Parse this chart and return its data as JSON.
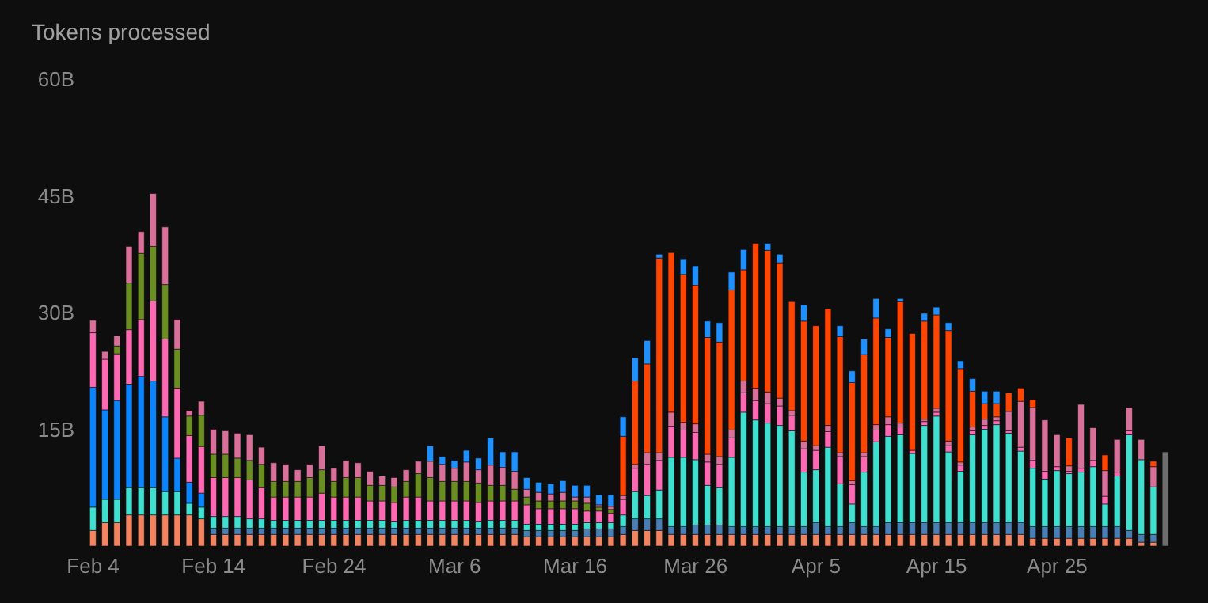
{
  "chart_data": {
    "type": "bar",
    "title": "Tokens processed",
    "stacked": true,
    "categories": [
      "Feb 4",
      null,
      null,
      null,
      null,
      null,
      null,
      null,
      null,
      null,
      "Feb 14",
      null,
      null,
      null,
      null,
      null,
      null,
      null,
      null,
      null,
      "Feb 24",
      null,
      null,
      null,
      null,
      null,
      null,
      null,
      null,
      null,
      "Mar 6",
      null,
      null,
      null,
      null,
      null,
      null,
      null,
      null,
      null,
      "Mar 16",
      null,
      null,
      null,
      null,
      null,
      null,
      null,
      null,
      null,
      "Mar 26",
      null,
      null,
      null,
      null,
      null,
      null,
      null,
      null,
      null,
      "Apr 5",
      null,
      null,
      null,
      null,
      null,
      null,
      null,
      null,
      null,
      "Apr 15",
      null,
      null,
      null,
      null,
      null,
      null,
      null,
      null,
      null,
      "Apr 25",
      null,
      null,
      null,
      null,
      null,
      null,
      null,
      null,
      null
    ],
    "ylim": [
      0,
      60
    ],
    "yticks": [
      {
        "value": 15,
        "label": "15B"
      },
      {
        "value": 30,
        "label": "30B"
      },
      {
        "value": 45,
        "label": "45B"
      },
      {
        "value": 60,
        "label": "60B"
      }
    ],
    "series": [
      {
        "color": "#f4845f",
        "values": [
          2,
          3,
          3,
          4,
          4,
          4,
          4,
          4,
          4,
          3.5,
          1.5,
          1.5,
          1.5,
          1.5,
          1.5,
          1.5,
          1.5,
          1.5,
          1.5,
          1.5,
          1.5,
          1.5,
          1.5,
          1.5,
          1.5,
          1.5,
          1.5,
          1.5,
          1.5,
          1.5,
          1.5,
          1.5,
          1.5,
          1.5,
          1.5,
          1.5,
          1.2,
          1.2,
          1.2,
          1.2,
          1.2,
          1.2,
          1.2,
          1.2,
          1.5,
          2,
          2,
          2,
          1.5,
          1.5,
          1.5,
          1.5,
          1.5,
          1.5,
          1.5,
          1.5,
          1.5,
          1.5,
          1.5,
          1.5,
          1.5,
          1.5,
          1.5,
          1.5,
          1.5,
          1.5,
          1.5,
          1.5,
          1.5,
          1.5,
          1.5,
          1.5,
          1.5,
          1.5,
          1.5,
          1.5,
          1.5,
          1.5,
          1,
          1,
          1,
          1,
          1,
          1,
          1,
          1,
          1,
          0.5,
          0.5,
          0
        ]
      },
      {
        "color": "#4a7fb5",
        "values": [
          0,
          0,
          0,
          0,
          0,
          0,
          0,
          0,
          0,
          0,
          0.8,
          0.8,
          0.8,
          0.8,
          0.8,
          0.8,
          0.8,
          0.8,
          0.8,
          0.8,
          0.8,
          0.8,
          0.8,
          0.8,
          0.8,
          0.8,
          0.8,
          0.8,
          0.8,
          0.8,
          0.8,
          0.8,
          0.8,
          0.8,
          0.8,
          0.8,
          0.8,
          0.8,
          0.8,
          0.8,
          0.8,
          1,
          1,
          1,
          1,
          1.5,
          1.5,
          1.5,
          1,
          1,
          1.2,
          1.2,
          1.2,
          1,
          1,
          1,
          1,
          1,
          1,
          1,
          1.5,
          1,
          1,
          1.5,
          1,
          1,
          1.5,
          1.5,
          1.5,
          1.5,
          1.5,
          1.5,
          1.5,
          1.5,
          1.5,
          1.5,
          1.5,
          1.5,
          1.5,
          1.5,
          1.5,
          1.5,
          1.5,
          1.5,
          1.5,
          1.5,
          1,
          1,
          1,
          0
        ]
      },
      {
        "color": "#40e0d0",
        "values": [
          3,
          3,
          3,
          3.5,
          3.5,
          3.5,
          3,
          3,
          1.5,
          1.5,
          1.5,
          1.5,
          1.5,
          1.2,
          1.2,
          1,
          1,
          1,
          1,
          1,
          1,
          1,
          1,
          1,
          1,
          0.8,
          1,
          1,
          1,
          1,
          1,
          1,
          0.8,
          1,
          1,
          1,
          0.8,
          0.8,
          0.8,
          0.8,
          0.8,
          0.8,
          0.8,
          0.8,
          1.5,
          3.5,
          3,
          3.7,
          8.9,
          8.9,
          8.4,
          5.1,
          4.8,
          8.9,
          14.7,
          13.7,
          13.3,
          13,
          12.3,
          7,
          6.8,
          10.2,
          5.5,
          2.4,
          7,
          10.9,
          11.1,
          11.3,
          8.9,
          12.5,
          13.7,
          9.1,
          6.6,
          11.3,
          12,
          12.6,
          11.5,
          9.2,
          7.5,
          6.1,
          7.2,
          6.8,
          7,
          7.7,
          2.9,
          6.5,
          12.3,
          9.6,
          6.1,
          0
        ]
      },
      {
        "color": "#0a84ff",
        "values": [
          15.4,
          11.5,
          12.7,
          13.3,
          14.3,
          13.7,
          9.6,
          4.3,
          2.7,
          1.8,
          0,
          0,
          0,
          0,
          0,
          0,
          0,
          0,
          0,
          0,
          0,
          0,
          0,
          0,
          0,
          0,
          0,
          0,
          0,
          0,
          0,
          0,
          0,
          0,
          0,
          0,
          0,
          0,
          0,
          0,
          0,
          0,
          0,
          0,
          0,
          0,
          0,
          0,
          0,
          0,
          0,
          0,
          0,
          0,
          0,
          0,
          0,
          0,
          0,
          0,
          0,
          0,
          0,
          0,
          0,
          0,
          0,
          0,
          0,
          0,
          0,
          0,
          0,
          0,
          0,
          0,
          0,
          0,
          0,
          0,
          0,
          0,
          0,
          0,
          0,
          0,
          0,
          0,
          0,
          0
        ]
      },
      {
        "color": "#ff69b4",
        "values": [
          7,
          6.5,
          6,
          7,
          7.3,
          10.3,
          10,
          9,
          6,
          6,
          5,
          5,
          5,
          5,
          4,
          3,
          3,
          3,
          3,
          3.5,
          3,
          3,
          3,
          2.5,
          2.5,
          2.5,
          3,
          3,
          2.5,
          2.5,
          2.5,
          2.5,
          2.5,
          2.5,
          2.5,
          2.5,
          2.5,
          2,
          2,
          2,
          2,
          1.5,
          1.5,
          1.2,
          2,
          3,
          4,
          3.8,
          4,
          3.5,
          3.5,
          3,
          3,
          2.5,
          2.5,
          2.5,
          2.5,
          2.5,
          2,
          3,
          2.5,
          2,
          3.5,
          2.5,
          2,
          1.5,
          1.5,
          1,
          0.4,
          0.5,
          0.5,
          0.8,
          0.8,
          0.5,
          0.5,
          0.5,
          0.3,
          0.5,
          1,
          1,
          0.5,
          0.3,
          0.5,
          0.8,
          1,
          0.5,
          0.5,
          0,
          0,
          0
        ]
      },
      {
        "color": "#6b8e23",
        "values": [
          0,
          0,
          1,
          6,
          8.5,
          7,
          7,
          5,
          2.5,
          4,
          3,
          3,
          2.5,
          2.5,
          3,
          2,
          2,
          2,
          2.5,
          3,
          2,
          2.5,
          2.5,
          2,
          2,
          2,
          2,
          3,
          3,
          2.5,
          2.5,
          2.5,
          2.5,
          2,
          2,
          1.5,
          1,
          1,
          1,
          1,
          1,
          1,
          0.5,
          0.5,
          0,
          0,
          0,
          0,
          0,
          0,
          0,
          0,
          0,
          0,
          0,
          0,
          0,
          0,
          0,
          0,
          0,
          0,
          0,
          0,
          0,
          0,
          0,
          0,
          0,
          0,
          0,
          0,
          0,
          0,
          0,
          0,
          0,
          0,
          0,
          0,
          0,
          0,
          0,
          0,
          0,
          0,
          0,
          0,
          0,
          0
        ]
      },
      {
        "color": "#d9709a",
        "values": [
          1.6,
          1,
          1.3,
          4.7,
          2.8,
          6.8,
          7.4,
          3.8,
          0.7,
          1.8,
          3.2,
          3,
          3.2,
          3.3,
          2.2,
          2.4,
          2.2,
          1.5,
          1.7,
          3.1,
          1.7,
          2.2,
          1.9,
          1.8,
          1.2,
          1.2,
          1.5,
          1.6,
          2.1,
          2.2,
          1.7,
          2.5,
          1.7,
          2.6,
          2.3,
          2.3,
          1,
          1.1,
          0.9,
          1.1,
          0.5,
          0.8,
          0.3,
          0.4,
          0.5,
          0.5,
          1.5,
          1,
          1.8,
          1,
          1.1,
          1,
          1,
          1,
          1.5,
          1.6,
          1.5,
          1,
          0.6,
          1,
          0.6,
          0.8,
          0.5,
          0.5,
          0.5,
          0.7,
          1,
          0.5,
          0,
          0.3,
          0.5,
          0.6,
          0.4,
          0.5,
          0.8,
          0.5,
          2.5,
          5.9,
          6.8,
          6.6,
          4.1,
          0.7,
          8.2,
          4.2,
          3.3,
          4.2,
          3,
          2.6,
          2.6,
          0
        ]
      },
      {
        "color": "#ff4500",
        "values": [
          0,
          0,
          0,
          0,
          0,
          0,
          0,
          0,
          0,
          0,
          0,
          0,
          0,
          0,
          0,
          0,
          0,
          0,
          0,
          0,
          0,
          0,
          0,
          0,
          0,
          0,
          0,
          0,
          0,
          0,
          0,
          0,
          0,
          0,
          0,
          0,
          0,
          0,
          0,
          0,
          0,
          0,
          0,
          0,
          7.6,
          10.7,
          11.4,
          25,
          20.5,
          19,
          17.8,
          15,
          14.7,
          18,
          14.3,
          18.6,
          18.2,
          17.4,
          14,
          15.4,
          15.4,
          15,
          14.9,
          12.6,
          12.6,
          13.7,
          10.2,
          15.6,
          15,
          12.6,
          12,
          14.2,
          12,
          4.6,
          2,
          1.7,
          2.4,
          1.7,
          1,
          0,
          0,
          3.6,
          0,
          0,
          2,
          0,
          0,
          0,
          0.7,
          0
        ]
      },
      {
        "color": "#1e90ff",
        "values": [
          0,
          0,
          0,
          0,
          0,
          0,
          0,
          0,
          0,
          0,
          0,
          0,
          0,
          0,
          0,
          0,
          0,
          0,
          0,
          0,
          0,
          0,
          0,
          0,
          0,
          0,
          0,
          0,
          2,
          1,
          1,
          1.5,
          1.5,
          3.5,
          2,
          2.5,
          1.5,
          1.3,
          1.3,
          1.5,
          1.5,
          1.5,
          1.3,
          1.5,
          2.5,
          3,
          3,
          0.5,
          0,
          2,
          2.5,
          2.1,
          2.5,
          2.3,
          2.6,
          0,
          0.9,
          1.1,
          0,
          2.1,
          0,
          0,
          1.4,
          1.5,
          2,
          2.5,
          1.1,
          0.4,
          0,
          1,
          1,
          1,
          1,
          1.6,
          1.6,
          1.6,
          0,
          0,
          0,
          0,
          0,
          0,
          0,
          0,
          0,
          0,
          0,
          0,
          0,
          0
        ]
      },
      {
        "color": "#6e6e6e",
        "values": [
          0,
          0,
          0,
          0,
          0,
          0,
          0,
          0,
          0,
          0,
          0,
          0,
          0,
          0,
          0,
          0,
          0,
          0,
          0,
          0,
          0,
          0,
          0,
          0,
          0,
          0,
          0,
          0,
          0,
          0,
          0,
          0,
          0,
          0,
          0,
          0,
          0,
          0,
          0,
          0,
          0,
          0,
          0,
          0,
          0,
          0,
          0,
          0,
          0,
          0,
          0,
          0,
          0,
          0,
          0,
          0,
          0,
          0,
          0,
          0,
          0,
          0,
          0,
          0,
          0,
          0,
          0,
          0,
          0,
          0,
          0,
          0,
          0,
          0,
          0,
          0,
          0,
          0,
          0,
          0,
          0,
          0,
          0,
          0,
          0,
          0,
          0,
          0,
          0,
          12.1
        ]
      }
    ]
  }
}
